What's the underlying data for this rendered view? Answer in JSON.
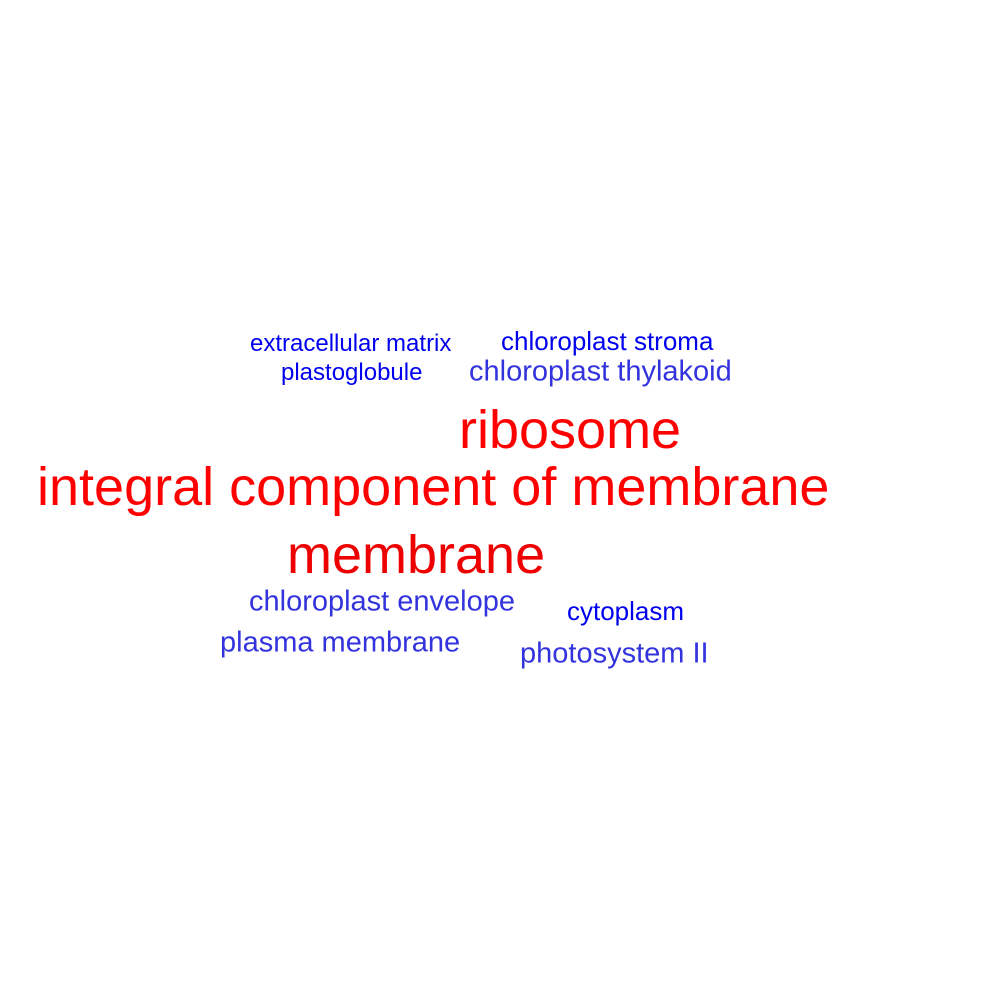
{
  "words": [
    {
      "text": "extracellular matrix",
      "color": "#0000ee"
    },
    {
      "text": "chloroplast stroma",
      "color": "#0000ee"
    },
    {
      "text": "plastoglobule",
      "color": "#0000ee"
    },
    {
      "text": "chloroplast thylakoid",
      "color": "#3333dd"
    },
    {
      "text": "ribosome",
      "color": "#ff0000"
    },
    {
      "text": "integral component of membrane",
      "color": "#ff0000"
    },
    {
      "text": "membrane",
      "color": "#ee0000"
    },
    {
      "text": "chloroplast envelope",
      "color": "#3333dd"
    },
    {
      "text": "cytoplasm",
      "color": "#0000ee"
    },
    {
      "text": "plasma membrane",
      "color": "#3333dd"
    },
    {
      "text": "photosystem II",
      "color": "#3333dd"
    }
  ]
}
